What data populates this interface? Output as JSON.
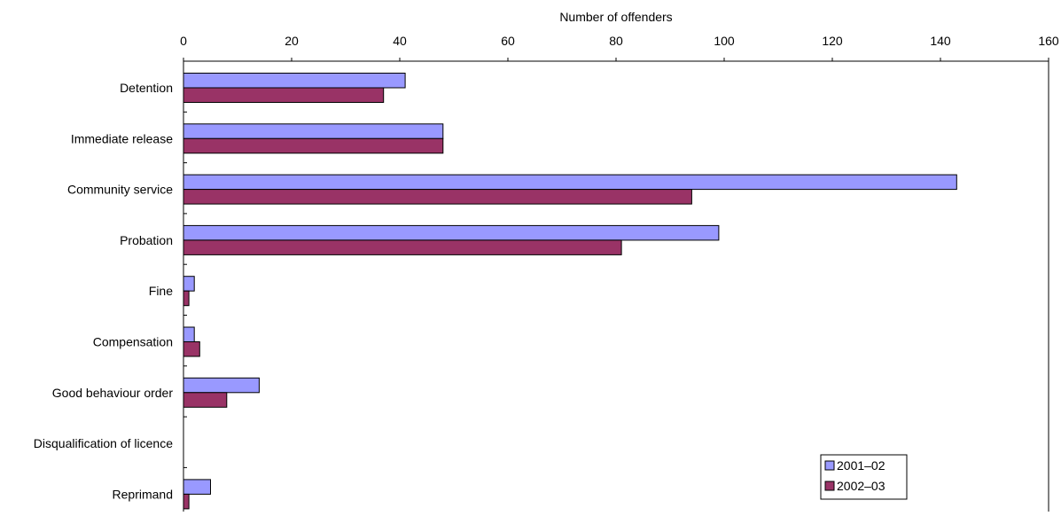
{
  "chart_data": {
    "type": "bar",
    "orientation": "horizontal",
    "xlabel": "Number of offenders",
    "xlim": [
      0,
      160
    ],
    "xticks": [
      "0",
      "20",
      "40",
      "60",
      "80",
      "100",
      "120",
      "140",
      "160"
    ],
    "x_axis_position": "top",
    "grid": false,
    "legend_position": "bottom-right",
    "categories": [
      "Detention",
      "Immediate release",
      "Community service",
      "Probation",
      "Fine",
      "Compensation",
      "Good behaviour order",
      "Disqualification of licence",
      "Reprimand"
    ],
    "series": [
      {
        "name": "2001–02",
        "color": "#9999ff",
        "values": [
          41,
          48,
          143,
          99,
          2,
          2,
          14,
          0,
          5
        ]
      },
      {
        "name": "2002–03",
        "color": "#993366",
        "values": [
          37,
          48,
          94,
          81,
          1,
          3,
          8,
          0,
          1
        ]
      }
    ]
  }
}
